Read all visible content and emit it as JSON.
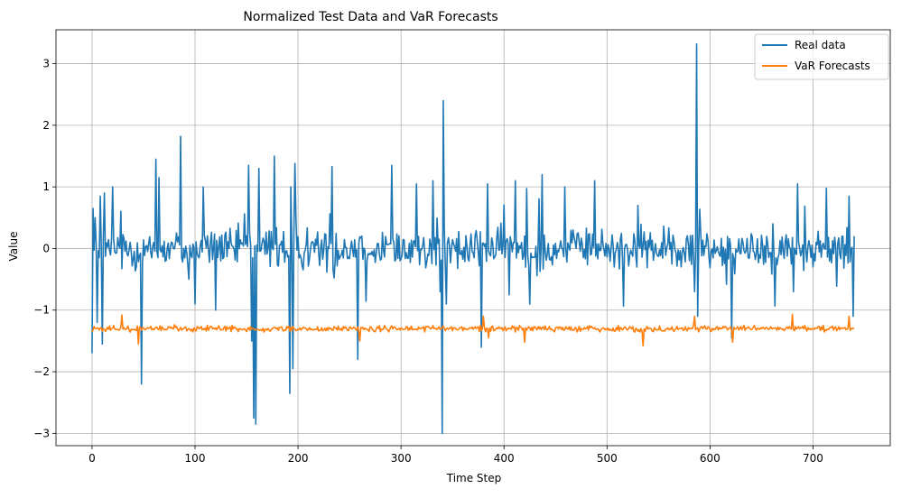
{
  "chart_data": {
    "type": "line",
    "title": "Normalized Test Data and VaR Forecasts",
    "xlabel": "Time Step",
    "ylabel": "Value",
    "xlim": [
      -35,
      775
    ],
    "ylim": [
      -3.2,
      3.55
    ],
    "grid": true,
    "legend_position": "top-right",
    "x_ticks": [
      0,
      100,
      200,
      300,
      400,
      500,
      600,
      700
    ],
    "y_ticks": [
      -3,
      -2,
      -1,
      0,
      1,
      2,
      3
    ],
    "x_tick_labels": [
      "0",
      "100",
      "200",
      "300",
      "400",
      "500",
      "600",
      "700"
    ],
    "y_tick_labels": [
      "−3",
      "−2",
      "−1",
      "0",
      "1",
      "2",
      "3"
    ],
    "n_points": 741,
    "series": [
      {
        "name": "Real data",
        "color": "#1f77b4",
        "key_points": [
          [
            0,
            -1.7
          ],
          [
            1,
            0.65
          ],
          [
            3,
            0.5
          ],
          [
            5,
            -1.2
          ],
          [
            8,
            0.85
          ],
          [
            10,
            -1.55
          ],
          [
            12,
            0.9
          ],
          [
            20,
            1.0
          ],
          [
            48,
            -2.2
          ],
          [
            62,
            1.45
          ],
          [
            65,
            1.15
          ],
          [
            86,
            1.82
          ],
          [
            94,
            -0.5
          ],
          [
            100,
            -0.9
          ],
          [
            108,
            1.0
          ],
          [
            120,
            -1.0
          ],
          [
            152,
            1.35
          ],
          [
            155,
            -1.5
          ],
          [
            157,
            -2.75
          ],
          [
            159,
            -2.85
          ],
          [
            162,
            1.3
          ],
          [
            177,
            1.5
          ],
          [
            192,
            -2.35
          ],
          [
            193,
            1.0
          ],
          [
            195,
            -1.95
          ],
          [
            197,
            1.38
          ],
          [
            233,
            1.33
          ],
          [
            258,
            -1.8
          ],
          [
            291,
            1.35
          ],
          [
            315,
            1.05
          ],
          [
            331,
            1.1
          ],
          [
            338,
            -0.7
          ],
          [
            340,
            -3.0
          ],
          [
            341,
            2.4
          ],
          [
            344,
            -0.9
          ],
          [
            378,
            -1.6
          ],
          [
            384,
            1.05
          ],
          [
            411,
            1.1
          ],
          [
            425,
            -0.9
          ],
          [
            437,
            1.2
          ],
          [
            459,
            1.0
          ],
          [
            488,
            1.1
          ],
          [
            507,
            -0.3
          ],
          [
            530,
            0.7
          ],
          [
            585,
            -0.7
          ],
          [
            587,
            3.32
          ],
          [
            588,
            -1.1
          ],
          [
            621,
            -1.45
          ],
          [
            681,
            -0.7
          ],
          [
            685,
            1.05
          ],
          [
            700,
            -0.3
          ],
          [
            735,
            0.85
          ],
          [
            737,
            0.0
          ],
          [
            739,
            -1.1
          ],
          [
            740,
            0.2
          ]
        ]
      },
      {
        "name": "VaR Forecasts",
        "color": "#ff7f0e",
        "mean": -1.3,
        "range": [
          -1.57,
          -1.08
        ],
        "key_points": [
          [
            0,
            -1.35
          ],
          [
            29,
            -1.08
          ],
          [
            45,
            -1.55
          ],
          [
            260,
            -1.5
          ],
          [
            380,
            -1.1
          ],
          [
            385,
            -1.45
          ],
          [
            420,
            -1.52
          ],
          [
            535,
            -1.58
          ],
          [
            585,
            -1.1
          ],
          [
            622,
            -1.52
          ],
          [
            680,
            -1.07
          ],
          [
            735,
            -1.1
          ]
        ]
      }
    ]
  }
}
